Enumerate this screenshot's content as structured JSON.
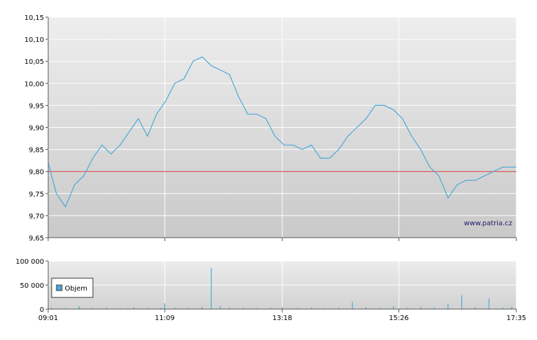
{
  "chart_data": [
    {
      "type": "line",
      "y_ticks": [
        "10,15",
        "10,10",
        "10,05",
        "10,00",
        "9,95",
        "9,90",
        "9,85",
        "9,80",
        "9,75",
        "9,70",
        "9,65"
      ],
      "y_tick_values": [
        10.15,
        10.1,
        10.05,
        10.0,
        9.95,
        9.9,
        9.85,
        9.8,
        9.75,
        9.7,
        9.65
      ],
      "ylim": [
        9.65,
        10.15
      ],
      "reference_line": 9.8,
      "watermark": "www.patria.cz",
      "line_color": "#4aa9d6",
      "reference_color": "#cc3333",
      "grid": true,
      "series": [
        {
          "x": [
            "09:01",
            "09:10",
            "09:20",
            "09:30",
            "09:40",
            "09:50",
            "10:00",
            "10:10",
            "10:20",
            "10:30",
            "10:40",
            "10:50",
            "11:00",
            "11:10",
            "11:20",
            "11:30",
            "11:40",
            "11:50",
            "12:00",
            "12:10",
            "12:20",
            "12:30",
            "12:40",
            "12:50",
            "13:00",
            "13:10",
            "13:20",
            "13:30",
            "13:40",
            "13:50",
            "14:00",
            "14:10",
            "14:20",
            "14:30",
            "14:40",
            "14:50",
            "15:00",
            "15:10",
            "15:20",
            "15:30",
            "15:40",
            "15:50",
            "16:00",
            "16:10",
            "16:20",
            "16:30",
            "16:40",
            "16:50",
            "17:00",
            "17:10",
            "17:20",
            "17:35"
          ],
          "y": [
            9.82,
            9.75,
            9.72,
            9.77,
            9.79,
            9.83,
            9.86,
            9.84,
            9.86,
            9.89,
            9.92,
            9.88,
            9.93,
            9.96,
            10.0,
            10.01,
            10.05,
            10.06,
            10.04,
            10.03,
            10.02,
            9.97,
            9.93,
            9.93,
            9.92,
            9.88,
            9.86,
            9.86,
            9.85,
            9.86,
            9.83,
            9.83,
            9.85,
            9.88,
            9.9,
            9.92,
            9.95,
            9.95,
            9.94,
            9.92,
            9.88,
            9.85,
            9.81,
            9.79,
            9.74,
            9.77,
            9.78,
            9.78,
            9.79,
            9.8,
            9.81,
            9.81
          ]
        }
      ]
    },
    {
      "type": "bar",
      "y_ticks": [
        "100 000",
        "50 000",
        "0"
      ],
      "y_tick_values": [
        100000,
        50000,
        0
      ],
      "ylim": [
        0,
        100000
      ],
      "legend": {
        "label": "Objem",
        "color": "#4aa9d6",
        "position": "left"
      },
      "bar_color": "#4aa9d6",
      "grid": true,
      "series": [
        {
          "name": "Objem",
          "x": [
            "09:05",
            "09:20",
            "09:35",
            "09:50",
            "10:05",
            "10:20",
            "10:35",
            "10:50",
            "11:05",
            "11:09",
            "11:20",
            "11:35",
            "11:50",
            "12:00",
            "12:10",
            "12:20",
            "12:35",
            "12:50",
            "13:05",
            "13:18",
            "13:35",
            "13:50",
            "14:05",
            "14:20",
            "14:35",
            "14:50",
            "15:05",
            "15:20",
            "15:35",
            "15:50",
            "16:05",
            "16:20",
            "16:35",
            "16:50",
            "17:05",
            "17:20",
            "17:30"
          ],
          "values": [
            3000,
            2000,
            6000,
            2500,
            3000,
            2000,
            4000,
            2500,
            3000,
            12000,
            3000,
            2500,
            5000,
            86000,
            6000,
            3000,
            2500,
            2000,
            3000,
            4000,
            2500,
            3000,
            2000,
            2500,
            15000,
            4000,
            3000,
            6000,
            2500,
            5000,
            3000,
            10000,
            29000,
            4000,
            22000,
            3000,
            5000
          ]
        }
      ]
    }
  ],
  "x_ticks": [
    "09:01",
    "11:09",
    "13:18",
    "15:26",
    "17:35"
  ]
}
